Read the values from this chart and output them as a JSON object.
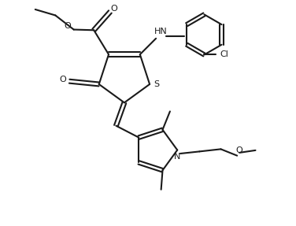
{
  "bg_color": "#ffffff",
  "line_color": "#1a1a1a",
  "line_width": 1.5,
  "figsize": [
    3.76,
    2.87
  ],
  "dpi": 100,
  "xlim": [
    0,
    10
  ],
  "ylim": [
    0,
    7.6
  ]
}
